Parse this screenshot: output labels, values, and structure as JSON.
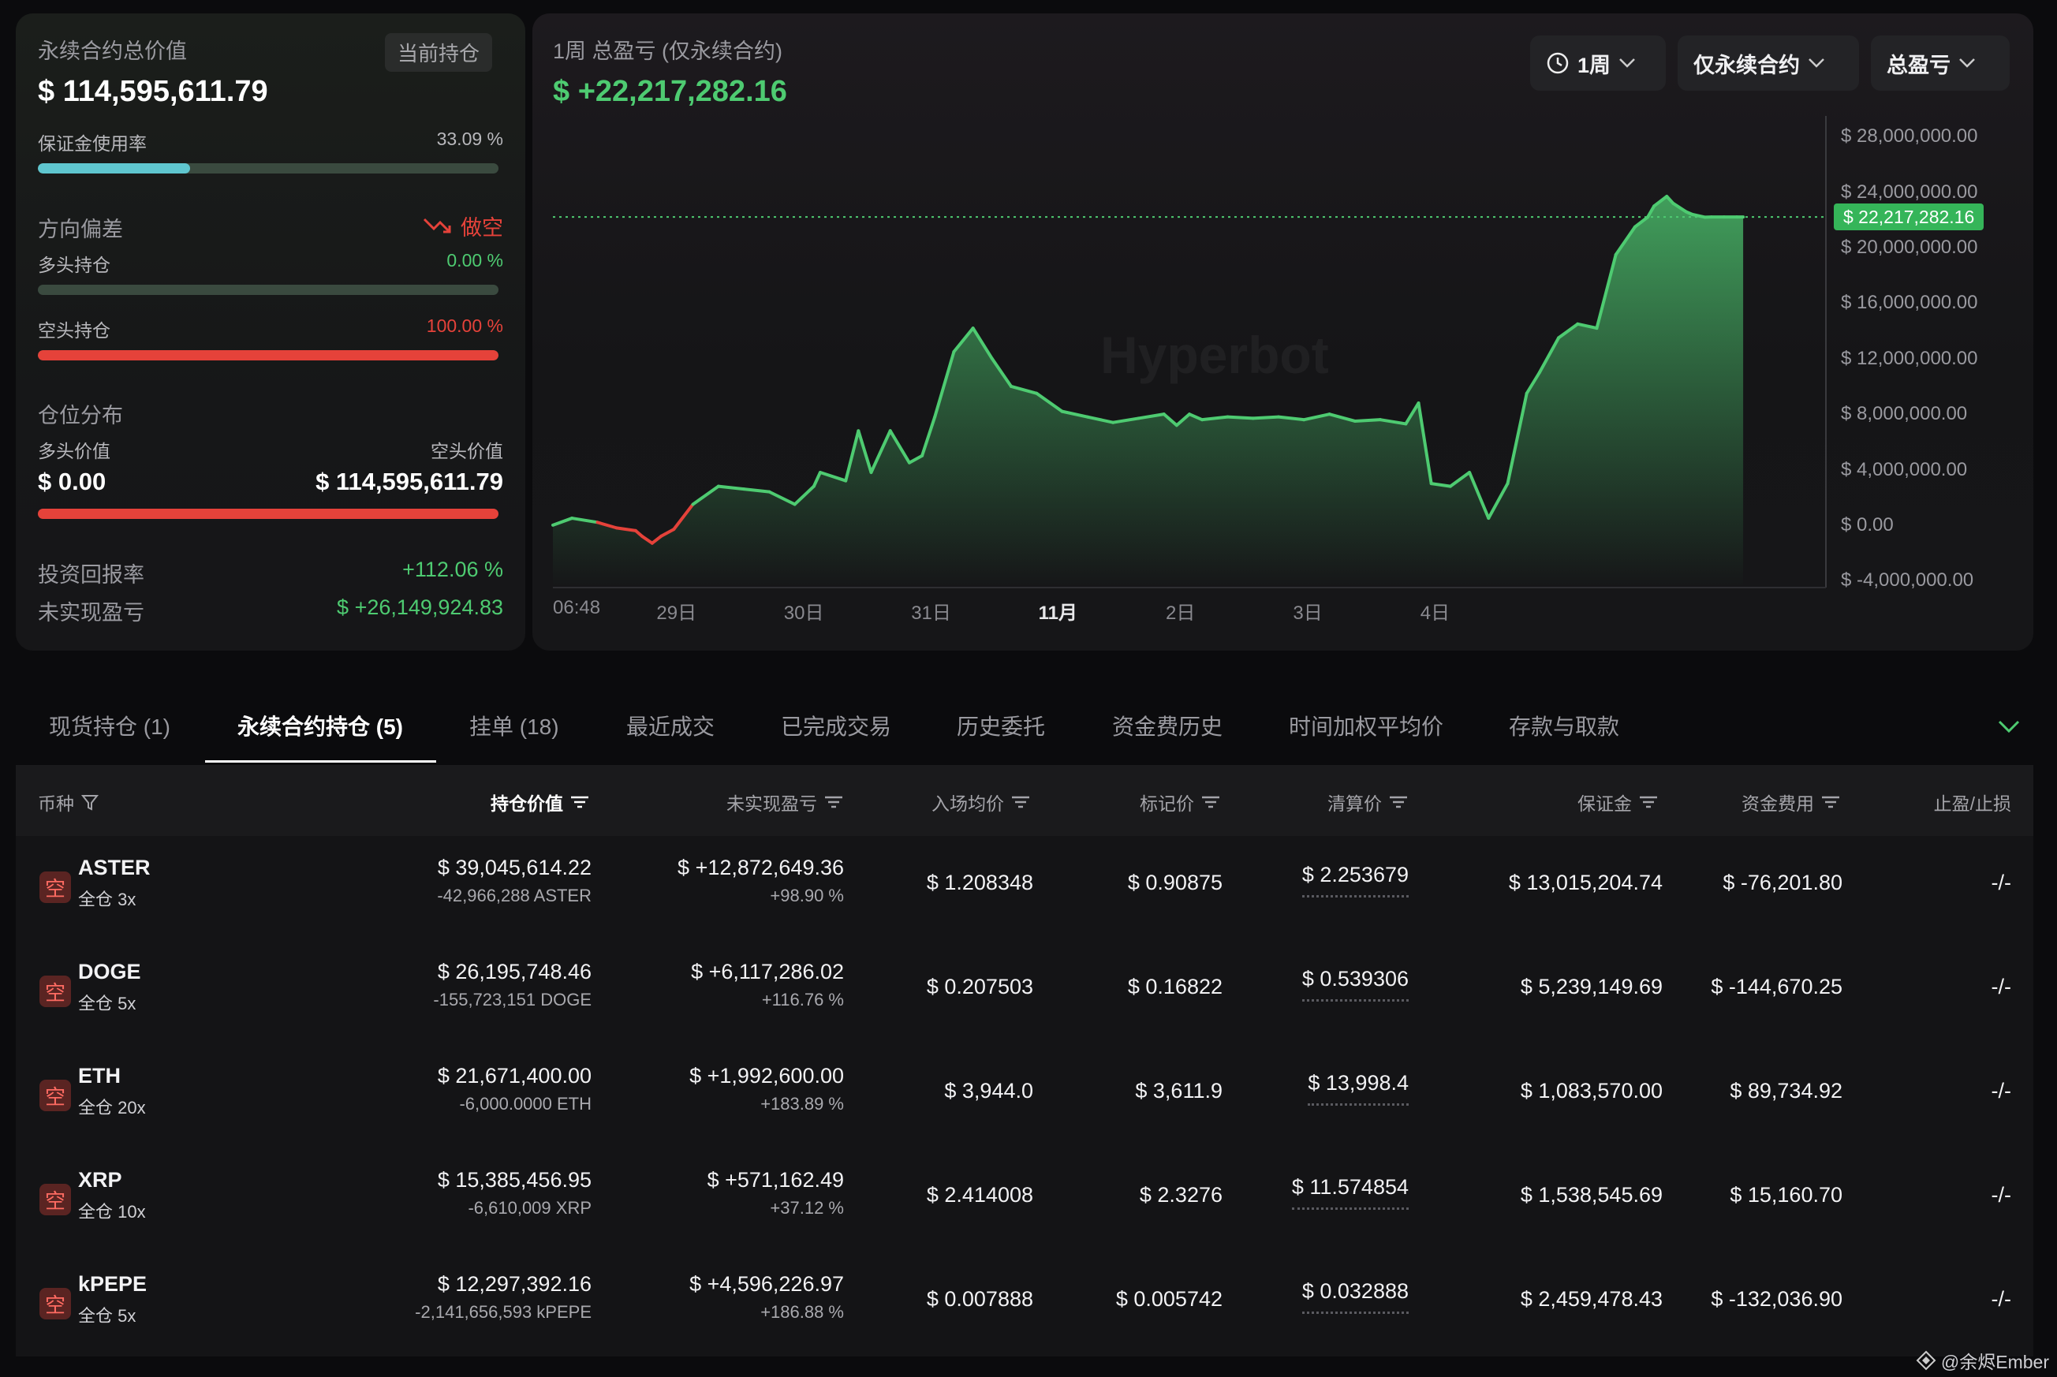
{
  "summary": {
    "total_value_label": "永续合约总价值",
    "current_badge": "当前持仓",
    "total_value": "$ 114,595,611.79",
    "margin_label": "保证金使用率",
    "margin_pct": "33.09 %",
    "margin_fraction": 0.3309,
    "bias_label": "方向偏差",
    "bias_value": "做空",
    "long_label": "多头持仓",
    "long_pct": "0.00 %",
    "short_label": "空头持仓",
    "short_pct": "100.00 %",
    "short_fraction": 1.0,
    "dist_label": "仓位分布",
    "long_value_label": "多头价值",
    "short_value_label": "空头价值",
    "long_value": "$ 0.00",
    "short_value": "$ 114,595,611.79",
    "roi_label": "投资回报率",
    "roi_value": "+112.06 %",
    "upnl_label": "未实现盈亏",
    "upnl_value": "$ +26,149,924.83"
  },
  "chart_panel": {
    "title": "1周 总盈亏 (仅永续合约)",
    "value": "$ +22,217,282.16",
    "dropdowns": [
      "1周",
      "仅永续合约",
      "总盈亏"
    ],
    "watermark": "Hyperbot",
    "current_marker": "$ 22,217,282.16"
  },
  "chart_data": {
    "type": "line",
    "title": "1周 总盈亏 (仅永续合约)",
    "xlabel": "",
    "ylabel": "",
    "ylim": [
      -4500000,
      29500000
    ],
    "y_ticks": [
      "$ 28,000,000.00",
      "$ 24,000,000.00",
      "$ 20,000,000.00",
      "$ 16,000,000.00",
      "$ 12,000,000.00",
      "$ 8,000,000.00",
      "$ 4,000,000.00",
      "$ 0.00",
      "$ -4,000,000.00"
    ],
    "y_tick_values": [
      28000000,
      24000000,
      20000000,
      16000000,
      12000000,
      8000000,
      4000000,
      0,
      -4000000
    ],
    "x_ticks": [
      "06:48",
      "29日",
      "30日",
      "31日",
      "11月",
      "2日",
      "3日",
      "4日"
    ],
    "x_tick_positions": [
      0,
      0.1,
      0.2,
      0.3,
      0.4,
      0.5,
      0.6,
      0.7
    ],
    "current_value": 22217282.16,
    "series": [
      {
        "x": [
          0.0,
          0.015,
          0.035,
          0.05,
          0.065,
          0.07,
          0.078,
          0.085,
          0.095,
          0.11,
          0.13,
          0.15,
          0.17,
          0.19,
          0.205,
          0.21,
          0.23,
          0.24,
          0.25,
          0.265,
          0.28,
          0.29,
          0.3,
          0.315,
          0.33,
          0.345,
          0.36,
          0.38,
          0.4,
          0.42,
          0.44,
          0.46,
          0.48,
          0.49,
          0.5,
          0.51,
          0.53,
          0.55,
          0.57,
          0.59,
          0.61,
          0.63,
          0.65,
          0.67,
          0.68,
          0.69,
          0.705,
          0.72,
          0.735,
          0.75,
          0.765,
          0.775,
          0.79,
          0.805,
          0.82,
          0.835,
          0.85,
          0.86,
          0.865,
          0.875,
          0.88,
          0.89,
          0.895,
          0.905,
          0.91,
          0.92,
          0.93,
          0.935
        ],
        "values": [
          0,
          500000,
          200000,
          -200000,
          -400000,
          -800000,
          -1300000,
          -800000,
          -300000,
          1500000,
          2800000,
          2600000,
          2400000,
          1500000,
          2800000,
          3800000,
          3200000,
          6800000,
          3800000,
          6800000,
          4500000,
          5000000,
          7800000,
          12500000,
          14200000,
          12000000,
          10000000,
          9500000,
          8200000,
          7800000,
          7400000,
          7700000,
          8000000,
          7200000,
          8000000,
          7600000,
          7800000,
          7700000,
          7800000,
          7600000,
          8000000,
          7500000,
          7600000,
          7300000,
          8800000,
          3000000,
          2800000,
          3800000,
          500000,
          3000000,
          9500000,
          11000000,
          13500000,
          14500000,
          14200000,
          19500000,
          21500000,
          22200000,
          23000000,
          23700000,
          23200000,
          22600000,
          22400000,
          22200000,
          22217282.16,
          22217282.16,
          22217282.16,
          22217282.16
        ],
        "negative_segment": "red"
      }
    ],
    "grid": false,
    "legend": "none"
  },
  "tabs": [
    "现货持仓 (1)",
    "永续合约持仓 (5)",
    "挂单 (18)",
    "最近成交",
    "已完成交易",
    "历史委托",
    "资金费历史",
    "时间加权平均价",
    "存款与取款"
  ],
  "table": {
    "headers": [
      "币种",
      "持仓价值",
      "未实现盈亏",
      "入场均价",
      "标记价",
      "清算价",
      "保证金",
      "资金费用",
      "止盈/止损"
    ],
    "rows": [
      {
        "badge": "空",
        "symbol": "ASTER",
        "mode": "全仓 3x",
        "value": "$ 39,045,614.22",
        "size": "-42,966,288 ASTER",
        "pnl": "$ +12,872,649.36",
        "pnl_pct": "+98.90 %",
        "entry": "$ 1.208348",
        "mark": "$ 0.90875",
        "liq": "$ 2.253679",
        "margin": "$ 13,015,204.74",
        "funding": "$ -76,201.80",
        "funding_sign": "neg",
        "tpsl": "-/-"
      },
      {
        "badge": "空",
        "symbol": "DOGE",
        "mode": "全仓 5x",
        "value": "$ 26,195,748.46",
        "size": "-155,723,151 DOGE",
        "pnl": "$ +6,117,286.02",
        "pnl_pct": "+116.76 %",
        "entry": "$ 0.207503",
        "mark": "$ 0.16822",
        "liq": "$ 0.539306",
        "margin": "$ 5,239,149.69",
        "funding": "$ -144,670.25",
        "funding_sign": "neg",
        "tpsl": "-/-"
      },
      {
        "badge": "空",
        "symbol": "ETH",
        "mode": "全仓 20x",
        "value": "$ 21,671,400.00",
        "size": "-6,000.0000 ETH",
        "pnl": "$ +1,992,600.00",
        "pnl_pct": "+183.89 %",
        "entry": "$ 3,944.0",
        "mark": "$ 3,611.9",
        "liq": "$ 13,998.4",
        "margin": "$ 1,083,570.00",
        "funding": "$ 89,734.92",
        "funding_sign": "pos",
        "tpsl": "-/-"
      },
      {
        "badge": "空",
        "symbol": "XRP",
        "mode": "全仓 10x",
        "value": "$ 15,385,456.95",
        "size": "-6,610,009 XRP",
        "pnl": "$ +571,162.49",
        "pnl_pct": "+37.12 %",
        "entry": "$ 2.414008",
        "mark": "$ 2.3276",
        "liq": "$ 11.574854",
        "margin": "$ 1,538,545.69",
        "funding": "$ 15,160.70",
        "funding_sign": "pos",
        "tpsl": "-/-"
      },
      {
        "badge": "空",
        "symbol": "kPEPE",
        "mode": "全仓 5x",
        "value": "$ 12,297,392.16",
        "size": "-2,141,656,593 kPEPE",
        "pnl": "$ +4,596,226.97",
        "pnl_pct": "+186.88 %",
        "entry": "$ 0.007888",
        "mark": "$ 0.005742",
        "liq": "$ 0.032888",
        "margin": "$ 2,459,478.43",
        "funding": "$ -132,036.90",
        "funding_sign": "neg",
        "tpsl": "-/-"
      }
    ]
  },
  "footer": "@余烬Ember",
  "colors": {
    "green": "#4ecb71",
    "red": "#e5423a",
    "teal": "#5fc6cf",
    "accent_dot": "#4ecb71"
  }
}
